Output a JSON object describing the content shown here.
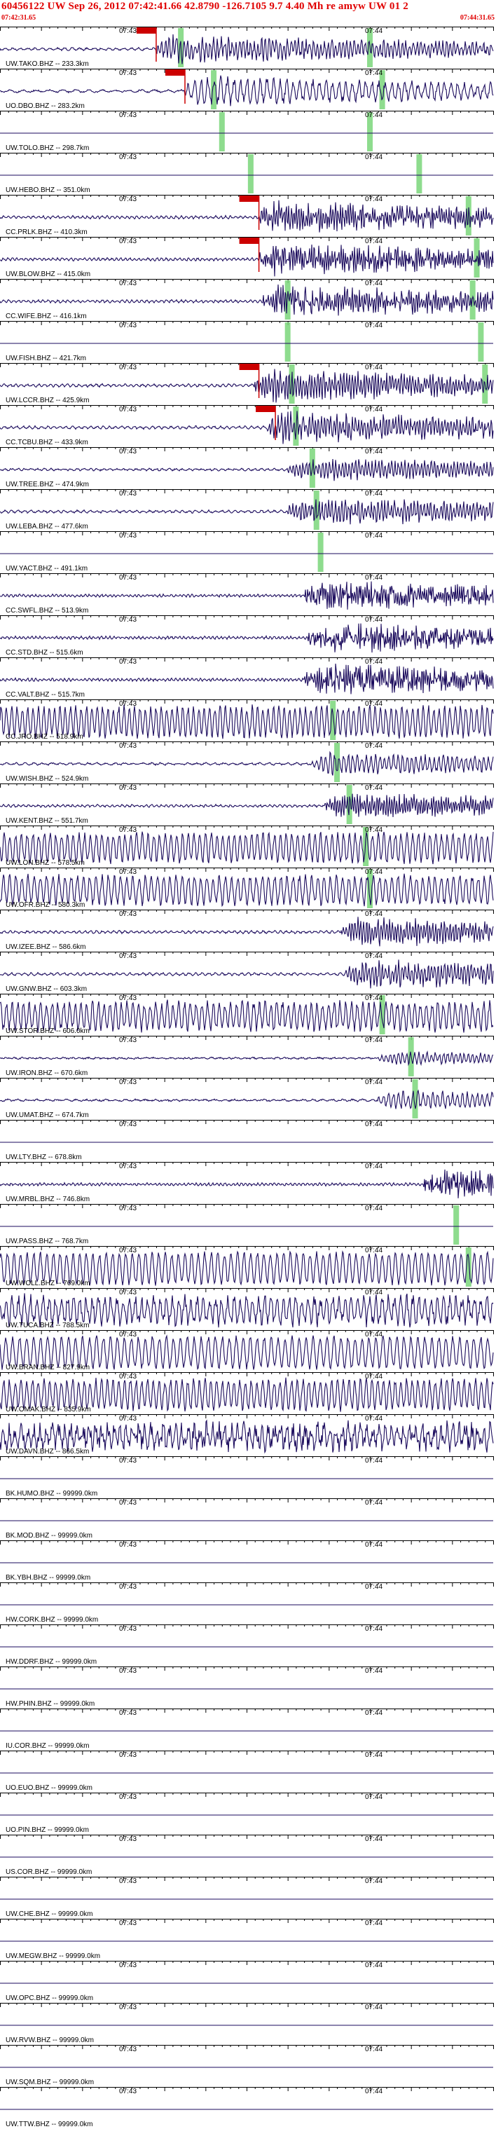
{
  "header": {
    "title": "60456122 UW Sep 26, 2012 07:42:41.66   42.8790 -126.7105  9.7 4.40 Mh re amyw UW 01   2",
    "start_time": "07:42:31.65",
    "end_time": "07:44:31.65"
  },
  "colors": {
    "header_text": "#e00000",
    "trace": "#1a0a5c",
    "pick_box": "#cc0000",
    "phase_band": "#7ad67a",
    "tick": "#000000"
  },
  "time_labels": {
    "minute_a": "07:43",
    "minute_b": "07:44"
  },
  "chart_data": {
    "type": "line",
    "title": "60456122 UW Sep 26, 2012 07:42:41.66   42.8790 -126.7105  9.7 4.40 Mh re amyw UW 01   2",
    "x_range": [
      "07:42:31.65",
      "07:44:31.65"
    ],
    "traces": [
      {
        "label": "UW.TAKO.BHZ -- 233.3km",
        "dist_km": 233.3,
        "amp": 0.9,
        "period": 0.9,
        "noise": 0.4,
        "onset_s": 38,
        "pick_s": 38,
        "band_s": 44,
        "band2_s": 90
      },
      {
        "label": "UO.DBO.BHZ -- 283.2km",
        "dist_km": 283.2,
        "amp": 0.95,
        "period": 1.6,
        "noise": 0.3,
        "onset_s": 45,
        "pick_s": 45,
        "band_s": 52,
        "band2_s": 93
      },
      {
        "label": "UW.TOLO.BHZ -- 298.7km",
        "dist_km": 298.7,
        "amp": 0.0,
        "period": 1.0,
        "noise": 0.0,
        "onset_s": 47,
        "pick_s": null,
        "band_s": 54,
        "band2_s": 90
      },
      {
        "label": "UW.HEBO.BHZ -- 351.0km",
        "dist_km": 351.0,
        "amp": 0.0,
        "period": 1.0,
        "noise": 0.0,
        "onset_s": 55,
        "pick_s": null,
        "band_s": 61,
        "band2_s": 102
      },
      {
        "label": "CC.PRLK.BHZ -- 410.3km",
        "dist_km": 410.3,
        "amp": 1.0,
        "period": 0.6,
        "noise": 0.5,
        "onset_s": 63,
        "pick_s": 63,
        "band_s": null,
        "band2_s": 114
      },
      {
        "label": "UW.BLOW.BHZ -- 415.0km",
        "dist_km": 415.0,
        "amp": 1.0,
        "period": 0.55,
        "noise": 0.5,
        "onset_s": 63,
        "pick_s": 63,
        "band_s": null,
        "band2_s": 116
      },
      {
        "label": "CC.WIFE.BHZ -- 416.1km",
        "dist_km": 416.1,
        "amp": 1.0,
        "period": 0.6,
        "noise": 0.5,
        "onset_s": 64,
        "pick_s": null,
        "band_s": 70,
        "band2_s": 115
      },
      {
        "label": "UW.FISH.BHZ -- 421.7km",
        "dist_km": 421.7,
        "amp": 0.0,
        "period": 1.0,
        "noise": 0.0,
        "onset_s": 65,
        "pick_s": null,
        "band_s": 70,
        "band2_s": 117
      },
      {
        "label": "UW.LCCR.BHZ -- 425.9km",
        "dist_km": 425.9,
        "amp": 1.0,
        "period": 0.7,
        "noise": 0.4,
        "onset_s": 62,
        "pick_s": 63,
        "band_s": 71,
        "band2_s": 118
      },
      {
        "label": "CC.TCBU.BHZ -- 433.9km",
        "dist_km": 433.9,
        "amp": 1.0,
        "period": 0.75,
        "noise": 0.45,
        "onset_s": 65,
        "pick_s": 67,
        "band_s": 72,
        "band2_s": null
      },
      {
        "label": "UW.TREE.BHZ -- 474.9km",
        "dist_km": 474.9,
        "amp": 0.7,
        "period": 0.8,
        "noise": 0.35,
        "onset_s": 70,
        "pick_s": null,
        "band_s": 76,
        "band2_s": null
      },
      {
        "label": "UW.LEBA.BHZ -- 477.6km",
        "dist_km": 477.6,
        "amp": 0.9,
        "period": 0.8,
        "noise": 0.4,
        "onset_s": 70,
        "pick_s": null,
        "band_s": 77,
        "band2_s": null
      },
      {
        "label": "UW.YACT.BHZ -- 491.1km",
        "dist_km": 491.1,
        "amp": 0.0,
        "period": 1.0,
        "noise": 0.0,
        "onset_s": 72,
        "pick_s": null,
        "band_s": 78,
        "band2_s": null
      },
      {
        "label": "CC.SWFL.BHZ -- 513.9km",
        "dist_km": 513.9,
        "amp": 0.9,
        "period": 0.5,
        "noise": 0.6,
        "onset_s": 74,
        "pick_s": null,
        "band_s": null,
        "band2_s": null
      },
      {
        "label": "CC.STD.BHZ -- 515.6km",
        "dist_km": 515.6,
        "amp": 0.95,
        "period": 0.5,
        "noise": 0.6,
        "onset_s": 75,
        "pick_s": null,
        "band_s": null,
        "band2_s": null
      },
      {
        "label": "CC.VALT.BHZ -- 515.7km",
        "dist_km": 515.7,
        "amp": 1.0,
        "period": 0.5,
        "noise": 0.6,
        "onset_s": 74,
        "pick_s": null,
        "band_s": null,
        "band2_s": null
      },
      {
        "label": "CC.JRO.BHZ -- 518.9km",
        "dist_km": 518.9,
        "amp": 0.95,
        "period": 1.3,
        "noise": 0.2,
        "onset_s": 0,
        "pick_s": null,
        "band_s": 81,
        "band2_s": null
      },
      {
        "label": "UW.WISH.BHZ -- 524.9km",
        "dist_km": 524.9,
        "amp": 0.7,
        "period": 1.1,
        "noise": 0.3,
        "onset_s": 76,
        "pick_s": null,
        "band_s": 82,
        "band2_s": null
      },
      {
        "label": "UW.KENT.BHZ -- 551.7km",
        "dist_km": 551.7,
        "amp": 0.8,
        "period": 0.6,
        "noise": 0.4,
        "onset_s": 79,
        "pick_s": null,
        "band_s": 85,
        "band2_s": null
      },
      {
        "label": "UW.LON.BHZ -- 578.5km",
        "dist_km": 578.5,
        "amp": 0.9,
        "period": 1.4,
        "noise": 0.2,
        "onset_s": 0,
        "pick_s": null,
        "band_s": 89,
        "band2_s": null
      },
      {
        "label": "UW.OFR.BHZ -- 580.3km",
        "dist_km": 580.3,
        "amp": 0.9,
        "period": 1.5,
        "noise": 0.2,
        "onset_s": 0,
        "pick_s": null,
        "band_s": 90,
        "band2_s": null
      },
      {
        "label": "UW.IZEE.BHZ -- 586.6km",
        "dist_km": 586.6,
        "amp": 0.9,
        "period": 0.7,
        "noise": 0.4,
        "onset_s": 83,
        "pick_s": null,
        "band_s": null,
        "band2_s": null
      },
      {
        "label": "UW.GNW.BHZ -- 603.3km",
        "dist_km": 603.3,
        "amp": 0.9,
        "period": 0.8,
        "noise": 0.4,
        "onset_s": 84,
        "pick_s": null,
        "band_s": null,
        "band2_s": null
      },
      {
        "label": "UW.STOR.BHZ -- 606.0km",
        "dist_km": 606.0,
        "amp": 0.9,
        "period": 1.4,
        "noise": 0.25,
        "onset_s": 0,
        "pick_s": null,
        "band_s": 93,
        "band2_s": null
      },
      {
        "label": "UW.IRON.BHZ -- 670.6km",
        "dist_km": 670.6,
        "amp": 0.4,
        "period": 1.0,
        "noise": 0.3,
        "onset_s": 92,
        "pick_s": null,
        "band_s": 100,
        "band2_s": null
      },
      {
        "label": "UW.UMAT.BHZ -- 674.7km",
        "dist_km": 674.7,
        "amp": 0.6,
        "period": 1.2,
        "noise": 0.3,
        "onset_s": 92,
        "pick_s": null,
        "band_s": 101,
        "band2_s": null
      },
      {
        "label": "UW.LTY.BHZ -- 678.8km",
        "dist_km": 678.8,
        "amp": 0.0,
        "period": 1.0,
        "noise": 0.0,
        "onset_s": 95,
        "pick_s": null,
        "band_s": null,
        "band2_s": null
      },
      {
        "label": "UW.MRBL.BHZ -- 746.8km",
        "dist_km": 746.8,
        "amp": 0.9,
        "period": 0.5,
        "noise": 0.6,
        "onset_s": 103,
        "pick_s": null,
        "band_s": null,
        "band2_s": null
      },
      {
        "label": "UW.PASS.BHZ -- 768.7km",
        "dist_km": 768.7,
        "amp": 0.0,
        "period": 1.0,
        "noise": 0.0,
        "onset_s": 106,
        "pick_s": null,
        "band_s": 111,
        "band2_s": null
      },
      {
        "label": "UW.WOLL.BHZ -- 769.0km",
        "dist_km": 769.0,
        "amp": 0.95,
        "period": 1.6,
        "noise": 0.15,
        "onset_s": 0,
        "pick_s": null,
        "band_s": 114,
        "band2_s": null
      },
      {
        "label": "UW.TUCA.BHZ -- 788.5km",
        "dist_km": 788.5,
        "amp": 0.95,
        "period": 1.5,
        "noise": 0.35,
        "onset_s": 0,
        "pick_s": null,
        "band_s": null,
        "band2_s": null
      },
      {
        "label": "UW.BRAN.BHZ -- 827.9km",
        "dist_km": 827.9,
        "amp": 0.95,
        "period": 1.7,
        "noise": 0.15,
        "onset_s": 0,
        "pick_s": null,
        "band_s": null,
        "band2_s": null
      },
      {
        "label": "UW.OMAK.BHZ -- 835.9km",
        "dist_km": 835.9,
        "amp": 0.95,
        "period": 1.4,
        "noise": 0.2,
        "onset_s": 0,
        "pick_s": null,
        "band_s": null,
        "band2_s": null
      },
      {
        "label": "UW.DAVN.BHZ -- 866.5km",
        "dist_km": 866.5,
        "amp": 0.9,
        "period": 1.5,
        "noise": 0.5,
        "onset_s": 0,
        "pick_s": null,
        "band_s": null,
        "band2_s": null
      },
      {
        "label": "BK.HUMO.BHZ -- 99999.0km",
        "dist_km": 99999.0,
        "amp": 0.0,
        "period": 1.0,
        "noise": 0.0,
        "onset_s": 0,
        "pick_s": null,
        "band_s": null,
        "band2_s": null
      },
      {
        "label": "BK.MOD.BHZ -- 99999.0km",
        "dist_km": 99999.0,
        "amp": 0.0,
        "period": 1.0,
        "noise": 0.0,
        "onset_s": 0,
        "pick_s": null,
        "band_s": null,
        "band2_s": null
      },
      {
        "label": "BK.YBH.BHZ -- 99999.0km",
        "dist_km": 99999.0,
        "amp": 0.0,
        "period": 1.0,
        "noise": 0.0,
        "onset_s": 0,
        "pick_s": null,
        "band_s": null,
        "band2_s": null
      },
      {
        "label": "HW.CORK.BHZ -- 99999.0km",
        "dist_km": 99999.0,
        "amp": 0.0,
        "period": 1.0,
        "noise": 0.0,
        "onset_s": 0,
        "pick_s": null,
        "band_s": null,
        "band2_s": null
      },
      {
        "label": "HW.DDRF.BHZ -- 99999.0km",
        "dist_km": 99999.0,
        "amp": 0.0,
        "period": 1.0,
        "noise": 0.0,
        "onset_s": 0,
        "pick_s": null,
        "band_s": null,
        "band2_s": null
      },
      {
        "label": "HW.PHIN.BHZ -- 99999.0km",
        "dist_km": 99999.0,
        "amp": 0.0,
        "period": 1.0,
        "noise": 0.0,
        "onset_s": 0,
        "pick_s": null,
        "band_s": null,
        "band2_s": null
      },
      {
        "label": "IU.COR.BHZ -- 99999.0km",
        "dist_km": 99999.0,
        "amp": 0.0,
        "period": 1.0,
        "noise": 0.0,
        "onset_s": 0,
        "pick_s": null,
        "band_s": null,
        "band2_s": null
      },
      {
        "label": "UO.EUO.BHZ -- 99999.0km",
        "dist_km": 99999.0,
        "amp": 0.0,
        "period": 1.0,
        "noise": 0.0,
        "onset_s": 0,
        "pick_s": null,
        "band_s": null,
        "band2_s": null
      },
      {
        "label": "UO.PIN.BHZ -- 99999.0km",
        "dist_km": 99999.0,
        "amp": 0.0,
        "period": 1.0,
        "noise": 0.0,
        "onset_s": 0,
        "pick_s": null,
        "band_s": null,
        "band2_s": null
      },
      {
        "label": "US.COR.BHZ -- 99999.0km",
        "dist_km": 99999.0,
        "amp": 0.0,
        "period": 1.0,
        "noise": 0.0,
        "onset_s": 0,
        "pick_s": null,
        "band_s": null,
        "band2_s": null
      },
      {
        "label": "UW.CHE.BHZ -- 99999.0km",
        "dist_km": 99999.0,
        "amp": 0.0,
        "period": 1.0,
        "noise": 0.0,
        "onset_s": 0,
        "pick_s": null,
        "band_s": null,
        "band2_s": null
      },
      {
        "label": "UW.MEGW.BHZ -- 99999.0km",
        "dist_km": 99999.0,
        "amp": 0.0,
        "period": 1.0,
        "noise": 0.0,
        "onset_s": 0,
        "pick_s": null,
        "band_s": null,
        "band2_s": null
      },
      {
        "label": "UW.OPC.BHZ -- 99999.0km",
        "dist_km": 99999.0,
        "amp": 0.0,
        "period": 1.0,
        "noise": 0.0,
        "onset_s": 0,
        "pick_s": null,
        "band_s": null,
        "band2_s": null
      },
      {
        "label": "UW.RVW.BHZ -- 99999.0km",
        "dist_km": 99999.0,
        "amp": 0.0,
        "period": 1.0,
        "noise": 0.0,
        "onset_s": 0,
        "pick_s": null,
        "band_s": null,
        "band2_s": null
      },
      {
        "label": "UW.SQM.BHZ -- 99999.0km",
        "dist_km": 99999.0,
        "amp": 0.0,
        "period": 1.0,
        "noise": 0.0,
        "onset_s": 0,
        "pick_s": null,
        "band_s": null,
        "band2_s": null
      },
      {
        "label": "UW.TTW.BHZ -- 99999.0km",
        "dist_km": 99999.0,
        "amp": 0.0,
        "period": 1.0,
        "noise": 0.0,
        "onset_s": 0,
        "pick_s": null,
        "band_s": null,
        "band2_s": null
      }
    ]
  }
}
